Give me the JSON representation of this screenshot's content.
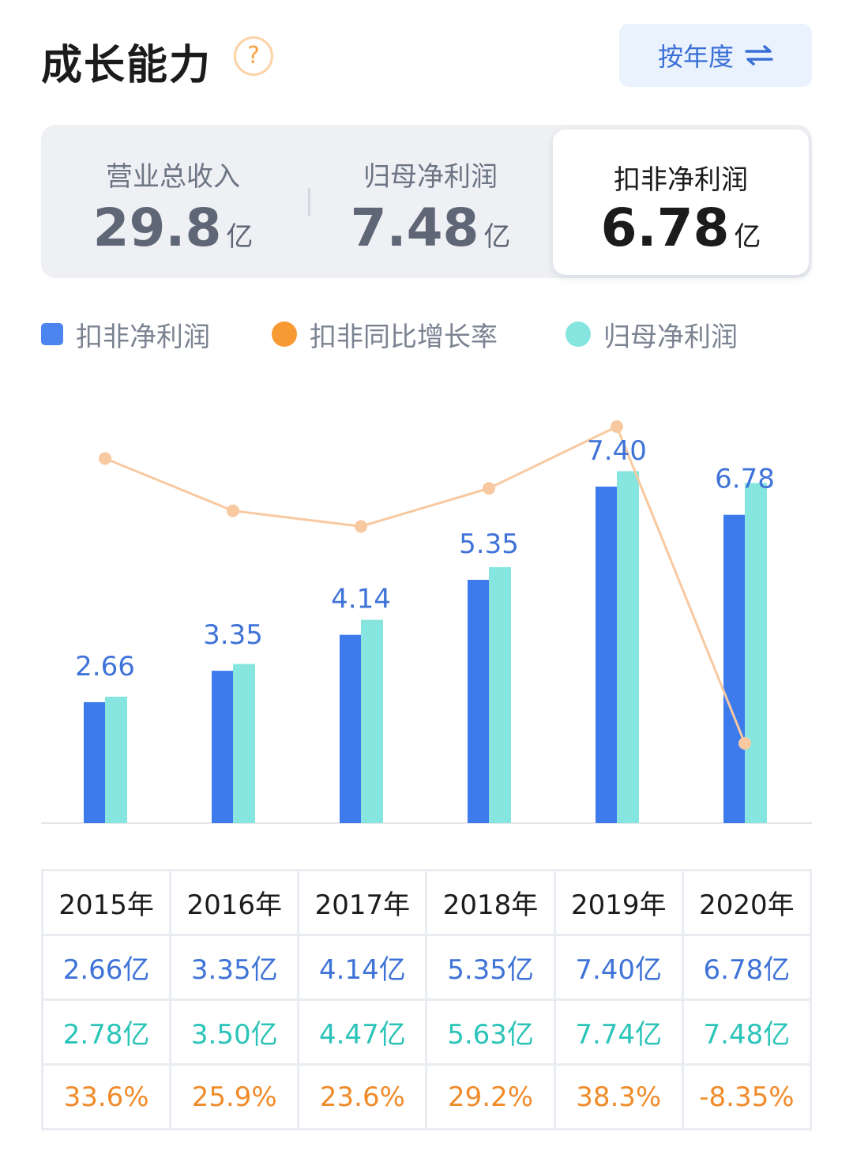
{
  "header": {
    "title": "成长能力",
    "help_symbol": "?",
    "period_button": "按年度"
  },
  "metrics": [
    {
      "label": "营业总收入",
      "value": "29.8",
      "unit": "亿"
    },
    {
      "label": "归母净利润",
      "value": "7.48",
      "unit": "亿"
    },
    {
      "label": "扣非净利润",
      "value": "6.78",
      "unit": "亿",
      "active": true
    }
  ],
  "legend": [
    {
      "label": "扣非净利润",
      "color": "#4c84f0"
    },
    {
      "label": "扣非同比增长率",
      "color": "#f79a34"
    },
    {
      "label": "归母净利润",
      "color": "#86e6df"
    }
  ],
  "chart_data": {
    "type": "bar",
    "categories": [
      "2015年",
      "2016年",
      "2017年",
      "2018年",
      "2019年",
      "2020年"
    ],
    "series": [
      {
        "name": "扣非净利润",
        "kind": "bar",
        "values": [
          2.66,
          3.35,
          4.14,
          5.35,
          7.4,
          6.78
        ],
        "color": "#3d7bed"
      },
      {
        "name": "归母净利润",
        "kind": "bar",
        "values": [
          2.78,
          3.5,
          4.47,
          5.63,
          7.74,
          7.48
        ],
        "color": "#86e6df"
      },
      {
        "name": "扣非同比增长率",
        "kind": "line",
        "values": [
          33.6,
          25.9,
          23.6,
          29.2,
          38.3,
          -8.35
        ],
        "color": "#f8c9a0"
      }
    ],
    "data_labels": [
      "2.66",
      "3.35",
      "4.14",
      "5.35",
      "7.40",
      "6.78"
    ],
    "ylim": [
      0,
      8.5
    ],
    "line_ylim": [
      -12,
      43
    ]
  },
  "table": {
    "years": [
      "2015年",
      "2016年",
      "2017年",
      "2018年",
      "2019年",
      "2020年"
    ],
    "kf_profit": [
      "2.66亿",
      "3.35亿",
      "4.14亿",
      "5.35亿",
      "7.40亿",
      "6.78亿"
    ],
    "parent_profit": [
      "2.78亿",
      "3.50亿",
      "4.47亿",
      "5.63亿",
      "7.74亿",
      "7.48亿"
    ],
    "kf_growth": [
      "33.6%",
      "25.9%",
      "23.6%",
      "29.2%",
      "38.3%",
      "-8.35%"
    ]
  }
}
